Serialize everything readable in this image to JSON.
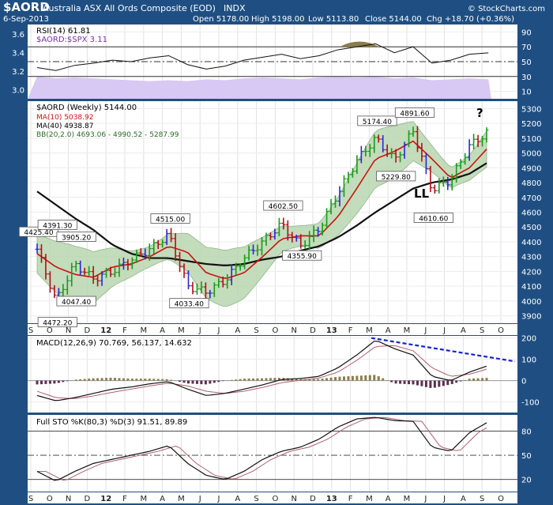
{
  "header": {
    "symbol": "$AORD",
    "name": "Australia ASX All Ords Composite (EOD)",
    "exchange": "INDX",
    "date": "6-Sep-2013",
    "open": "Open 5178.00",
    "high": "High 5198.00",
    "low": "Low 5113.80",
    "close": "Close 5144.00",
    "chg": "Chg +18.70 (+0.36%)",
    "watermark": "© StockCharts.com"
  },
  "colors": {
    "frame": "#1f4f82",
    "panel_bg": "#ffffff",
    "price_up": "#1a9a1a",
    "price_down": "#b0101a",
    "blue_bar": "#2a2ad0",
    "ma10": "#cc1111",
    "ma40": "#111111",
    "bb_fill": "#b9d7b0",
    "rsi_ratio_fill": "#d8c8f4",
    "macd_blue": "#1a22cc",
    "macd_olive": "#8b7d4b",
    "macd_purple": "#5a2f52",
    "overbought_fill": "#8b7d4b"
  },
  "x_axis": {
    "labels": [
      "S",
      "O",
      "N",
      "D",
      "12",
      "F",
      "M",
      "A",
      "M",
      "J",
      "J",
      "A",
      "S",
      "O",
      "N",
      "D",
      "13",
      "F",
      "M",
      "A",
      "M",
      "J",
      "J",
      "A",
      "S",
      "O"
    ]
  },
  "rsi_panel": {
    "title": "RSI(14) 61.81",
    "ratio_label": "$AORD:$SPX 3.11",
    "right_ticks": [
      "90",
      "70",
      "50",
      "30",
      "10"
    ],
    "left_ticks": [
      "3.6",
      "3.4",
      "3.2",
      "3.0"
    ]
  },
  "price_panel": {
    "title": "$AORD (Weekly) 5144.00",
    "ma10_label": "MA(10) 5038.92",
    "ma40_label": "MA(40) 4938.87",
    "bb_label": "BB(20,2.0) 4693.06 - 4990.52 - 5287.99",
    "right_ticks": [
      "5300",
      "5200",
      "5100",
      "5000",
      "4900",
      "4800",
      "4700",
      "4600",
      "4500",
      "4400",
      "4300",
      "4200",
      "4100",
      "4000",
      "3900"
    ],
    "callouts": [
      "4425.40",
      "4472.20",
      "4391.30",
      "4047.40",
      "3905.20",
      "4515.00",
      "4033.40",
      "4602.50",
      "4355.90",
      "5174.40",
      "5229.80",
      "4891.60",
      "4610.60"
    ],
    "annotation_ll": "LL",
    "annotation_q": "?"
  },
  "macd_panel": {
    "title": "MACD(12,26,9) 70.769, 56.137, 14.632",
    "right_ticks": [
      "200",
      "100",
      "0",
      "-100"
    ]
  },
  "sto_panel": {
    "title": "Full STO %K(80,3) %D(3) 91.51, 89.89",
    "right_ticks": [
      "80",
      "50",
      "20"
    ]
  },
  "chart_data": {
    "type": "line",
    "title": "$AORD Australia ASX All Ords Composite (EOD) - Weekly",
    "x": [
      "2011-09",
      "2011-10",
      "2011-11",
      "2011-12",
      "2012-01",
      "2012-02",
      "2012-03",
      "2012-04",
      "2012-05",
      "2012-06",
      "2012-07",
      "2012-08",
      "2012-09",
      "2012-10",
      "2012-11",
      "2012-12",
      "2013-01",
      "2013-02",
      "2013-03",
      "2013-04",
      "2013-05",
      "2013-06",
      "2013-07",
      "2013-08",
      "2013-09"
    ],
    "series": [
      {
        "name": "$AORD (Weekly)",
        "values": [
          4350,
          4000,
          4250,
          4150,
          4200,
          4280,
          4350,
          4450,
          4100,
          4060,
          4140,
          4290,
          4400,
          4520,
          4370,
          4490,
          4730,
          4950,
          5100,
          4950,
          5150,
          4750,
          4820,
          5050,
          5144
        ]
      },
      {
        "name": "MA(10)",
        "values": [
          4320,
          4230,
          4180,
          4160,
          4230,
          4250,
          4300,
          4370,
          4330,
          4190,
          4150,
          4190,
          4300,
          4420,
          4440,
          4440,
          4570,
          4760,
          4960,
          5010,
          5080,
          4960,
          4830,
          4900,
          5038.92
        ]
      },
      {
        "name": "MA(40)",
        "values": [
          4740,
          4650,
          4560,
          4480,
          4380,
          4320,
          4290,
          4290,
          4270,
          4250,
          4240,
          4250,
          4280,
          4300,
          4340,
          4370,
          4430,
          4510,
          4600,
          4680,
          4760,
          4800,
          4820,
          4860,
          4938.87
        ]
      }
    ],
    "price_points": [
      {
        "date": "2011-09",
        "label": "4425.40",
        "value": 4425.4
      },
      {
        "date": "2011-10",
        "label": "3905.20",
        "value": 3905.2
      },
      {
        "date": "2011-10",
        "label": "4472.20",
        "value": 4472.2
      },
      {
        "date": "2011-11",
        "label": "4047.40",
        "value": 4047.4
      },
      {
        "date": "2011-11",
        "label": "4391.30",
        "value": 4391.3
      },
      {
        "date": "2012-04",
        "label": "4515.00",
        "value": 4515.0
      },
      {
        "date": "2012-05",
        "label": "4033.40",
        "value": 4033.4
      },
      {
        "date": "2012-10",
        "label": "4602.50",
        "value": 4602.5
      },
      {
        "date": "2012-11",
        "label": "4355.90",
        "value": 4355.9
      },
      {
        "date": "2013-03",
        "label": "5174.40",
        "value": 5174.4
      },
      {
        "date": "2013-04",
        "label": "4891.60",
        "value": 4891.6
      },
      {
        "date": "2013-05",
        "label": "5229.80",
        "value": 5229.8
      },
      {
        "date": "2013-06",
        "label": "4610.60",
        "value": 4610.6
      }
    ],
    "ylim": [
      3850,
      5350
    ],
    "indicators": {
      "rsi_latest": 61.81,
      "ratio_latest": 3.11,
      "macd": [
        70.769,
        56.137,
        14.632
      ],
      "full_sto": [
        91.51,
        89.89
      ],
      "bb": [
        4693.06,
        4990.52,
        5287.99
      ]
    },
    "grid": true,
    "legend_placement": "top-left"
  }
}
